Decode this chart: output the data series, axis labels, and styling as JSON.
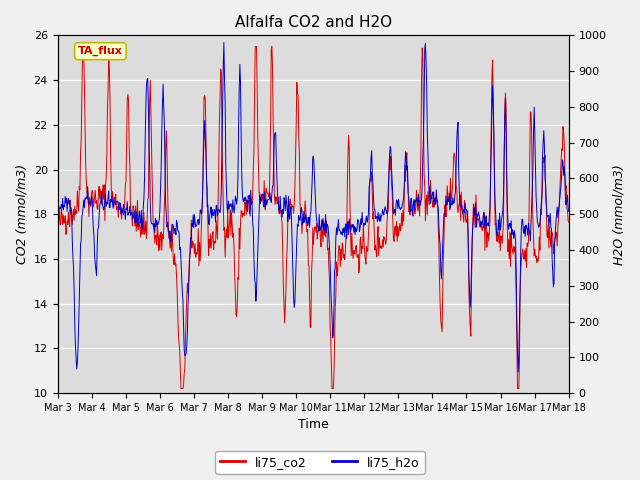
{
  "title": "Alfalfa CO2 and H2O",
  "xlabel": "Time",
  "ylabel_left": "CO2 (mmol/m3)",
  "ylabel_right": "H2O (mmol/m3)",
  "ylim_left": [
    10,
    26
  ],
  "ylim_right": [
    0,
    1000
  ],
  "yticks_left": [
    10,
    12,
    14,
    16,
    18,
    20,
    22,
    24,
    26
  ],
  "yticks_right": [
    0,
    100,
    200,
    300,
    400,
    500,
    600,
    700,
    800,
    900,
    1000
  ],
  "xtick_labels": [
    "Mar 3",
    "Mar 4",
    "Mar 5",
    "Mar 6",
    "Mar 7",
    "Mar 8",
    "Mar 9",
    "Mar 10",
    "Mar 11",
    "Mar 12",
    "Mar 13",
    "Mar 14",
    "Mar 15",
    "Mar 16",
    "Mar 17",
    "Mar 18"
  ],
  "annotation_text": "TA_flux",
  "annotation_bg": "#ffffcc",
  "annotation_border": "#bbbb00",
  "annotation_text_color": "#cc0000",
  "legend_entries": [
    "li75_co2",
    "li75_h2o"
  ],
  "legend_colors": [
    "#dd0000",
    "#0000cc"
  ],
  "line_color_co2": "#dd0000",
  "line_color_h2o": "#0000cc",
  "fig_bg": "#f0f0f0",
  "plot_bg": "#dcdcdc",
  "title_fontsize": 11,
  "axis_fontsize": 9,
  "tick_fontsize": 8,
  "legend_fontsize": 9
}
